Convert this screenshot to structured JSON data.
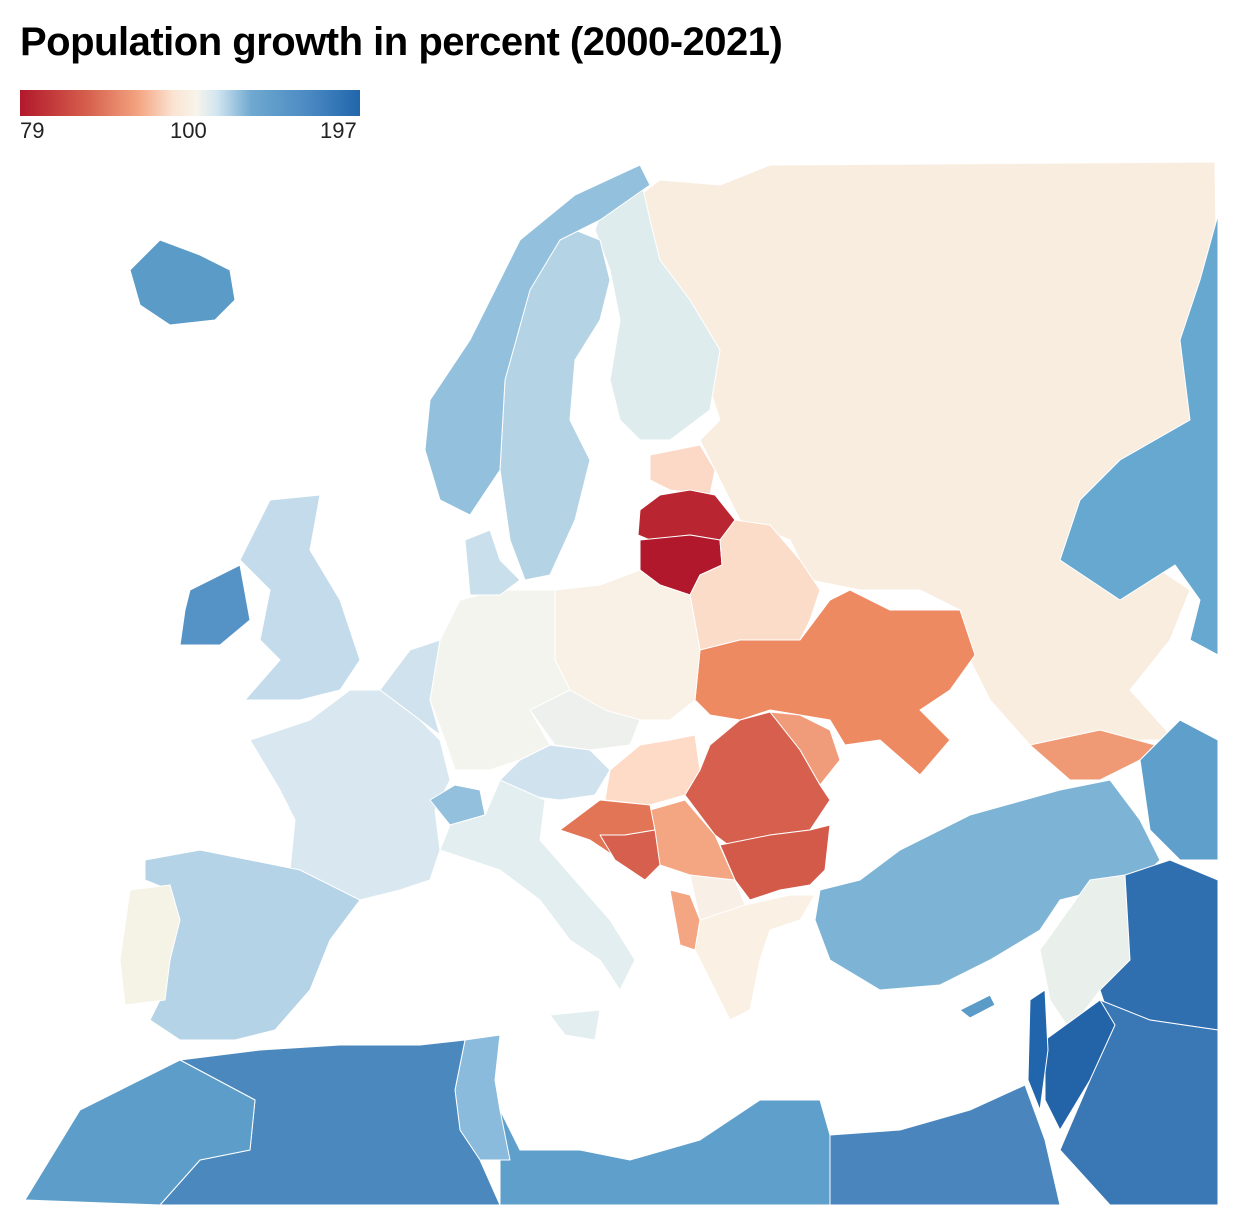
{
  "title": "Population growth in percent (2000-2021)",
  "legend": {
    "min_label": "79",
    "mid_label": "100",
    "max_label": "197",
    "min_value": 79,
    "mid_value": 100,
    "max_value": 197,
    "colors": [
      "#b2182b",
      "#f7f4ea",
      "#2166ac"
    ]
  },
  "region_colors": {
    "russia": "#f9ede0",
    "estonia": "#fbd9c6",
    "latvia": "#b92530",
    "lithuania": "#b2182b",
    "belarus": "#fbdcc8",
    "ukraine": "#ee8a62",
    "moldova": "#f09c7a",
    "romania": "#d6604d",
    "bulgaria": "#d35a48",
    "serbia": "#f4a582",
    "croatia": "#e27555",
    "bosnia": "#d6604d",
    "hungary": "#fddbc7",
    "poland": "#f9f0e6",
    "germany": "#f4f4ee",
    "czechia": "#eef0ed",
    "austria": "#cfe2ee",
    "switzerland": "#92c0dd",
    "norway": "#92c0dd",
    "sweden": "#b4d4e6",
    "finland": "#dfecee",
    "iceland": "#5a9bc8",
    "ireland": "#5592c5",
    "uk": "#c3dbeb",
    "france": "#d9e8f0",
    "benelux": "#cfe2ee",
    "denmark": "#c9dfec",
    "spain": "#b5d3e6",
    "portugal": "#f5f2e6",
    "italy": "#e3eef0",
    "balkans_south": "#f8f0e6",
    "greece": "#faf0e4",
    "turkey": "#7db4d6",
    "syria": "#e9efea",
    "iraq": "#2f6fb0",
    "jordan": "#2363a8",
    "israel": "#2166ac",
    "egypt": "#4a86bd",
    "libya": "#5f9fcb",
    "tunisia": "#8bbbdc",
    "algeria": "#4b88bd",
    "morocco": "#5d9dca",
    "kazakhstan": "#66a8d0",
    "georgia": "#f09a75",
    "caucasus_east": "#5f9fcb",
    "cyprus": "#5a9bc8",
    "saudi": "#3a78b5"
  }
}
